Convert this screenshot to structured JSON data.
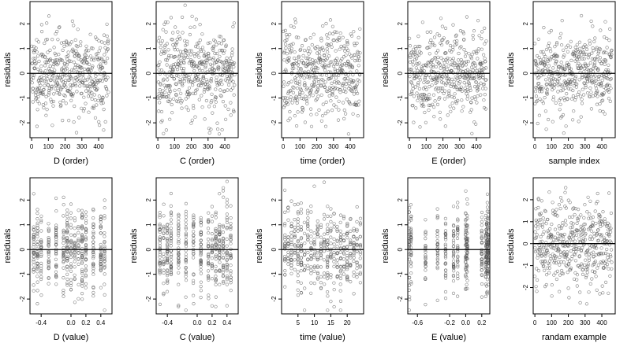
{
  "chart_data": [
    {
      "type": "scatter",
      "name": "D (order)",
      "xlabel": "D (order)",
      "ylabel": "residuals",
      "xlim": [
        -10,
        480
      ],
      "ylim": [
        -2.6,
        2.9
      ],
      "xticks": [
        0,
        100,
        200,
        300,
        400
      ],
      "xtick_labels": [
        "0",
        "100",
        "200",
        "300",
        "400"
      ],
      "yticks": [
        -2,
        -1,
        0,
        1,
        2
      ],
      "ytick_labels": [
        "-2",
        "-1",
        "0",
        "1",
        "2"
      ],
      "zero_line": true,
      "grid": false,
      "pattern": "order",
      "spread": 0.85,
      "seed": 11
    },
    {
      "type": "scatter",
      "name": "C (order)",
      "xlabel": "C (order)",
      "ylabel": "residuals",
      "xlim": [
        -10,
        480
      ],
      "ylim": [
        -2.6,
        2.9
      ],
      "xticks": [
        0,
        100,
        200,
        300,
        400
      ],
      "xtick_labels": [
        "0",
        "100",
        "200",
        "300",
        "400"
      ],
      "yticks": [
        -2,
        -1,
        0,
        1,
        2
      ],
      "ytick_labels": [
        "-2",
        "-1",
        "0",
        "1",
        "2"
      ],
      "zero_line": true,
      "grid": false,
      "pattern": "order",
      "spread": 0.9,
      "seed": 23
    },
    {
      "type": "scatter",
      "name": "time (order)",
      "xlabel": "time (order)",
      "ylabel": "residuals",
      "xlim": [
        -10,
        480
      ],
      "ylim": [
        -2.6,
        2.9
      ],
      "xticks": [
        0,
        100,
        200,
        300,
        400
      ],
      "xtick_labels": [
        "0",
        "100",
        "200",
        "300",
        "400"
      ],
      "yticks": [
        -2,
        -1,
        0,
        1,
        2
      ],
      "ytick_labels": [
        "-2",
        "-1",
        "0",
        "1",
        "2"
      ],
      "zero_line": true,
      "grid": false,
      "pattern": "order",
      "spread": 0.9,
      "seed": 37
    },
    {
      "type": "scatter",
      "name": "E (order)",
      "xlabel": "E (order)",
      "ylabel": "residuals",
      "xlim": [
        -10,
        480
      ],
      "ylim": [
        -2.6,
        2.9
      ],
      "xticks": [
        0,
        100,
        200,
        300,
        400
      ],
      "xtick_labels": [
        "0",
        "100",
        "200",
        "300",
        "400"
      ],
      "yticks": [
        -2,
        -1,
        0,
        1,
        2
      ],
      "ytick_labels": [
        "-2",
        "-1",
        "0",
        "1",
        "2"
      ],
      "zero_line": true,
      "grid": false,
      "pattern": "order",
      "spread": 0.85,
      "seed": 41
    },
    {
      "type": "scatter",
      "name": "sample index",
      "xlabel": "sample index",
      "ylabel": "residuals",
      "xlim": [
        -10,
        480
      ],
      "ylim": [
        -2.6,
        2.9
      ],
      "xticks": [
        0,
        100,
        200,
        300,
        400
      ],
      "xtick_labels": [
        "0",
        "100",
        "200",
        "300",
        "400"
      ],
      "yticks": [
        -2,
        -1,
        0,
        1,
        2
      ],
      "ytick_labels": [
        "-2",
        "-1",
        "0",
        "1",
        "2"
      ],
      "zero_line": true,
      "grid": false,
      "pattern": "order",
      "spread": 0.85,
      "seed": 53
    },
    {
      "type": "scatter",
      "name": "D (value)",
      "xlabel": "D (value)",
      "ylabel": "residuals",
      "xlim": [
        -0.55,
        0.55
      ],
      "ylim": [
        -2.6,
        2.9
      ],
      "xticks": [
        -0.4,
        0,
        0.2,
        0.4
      ],
      "xtick_labels": [
        "-0.4",
        "0.0",
        "0.2",
        "0.4"
      ],
      "yticks": [
        -2,
        -1,
        0,
        1,
        2
      ],
      "ytick_labels": [
        "-2",
        "-1",
        "0",
        "1",
        "2"
      ],
      "zero_line": true,
      "grid": false,
      "pattern": "value",
      "levels": [
        -0.5,
        -0.45,
        -0.4,
        -0.3,
        -0.2,
        -0.1,
        -0.05,
        0,
        0.05,
        0.1,
        0.15,
        0.2,
        0.3,
        0.4,
        0.45
      ],
      "spread": 0.85,
      "seed": 61
    },
    {
      "type": "scatter",
      "name": "C (value)",
      "xlabel": "C (value)",
      "ylabel": "residuals",
      "xlim": [
        -0.55,
        0.55
      ],
      "ylim": [
        -2.6,
        2.9
      ],
      "xticks": [
        -0.4,
        0,
        0.2,
        0.4
      ],
      "xtick_labels": [
        "-0.4",
        "0.0",
        "0.2",
        "0.4"
      ],
      "yticks": [
        -2,
        -1,
        0,
        1,
        2
      ],
      "ytick_labels": [
        "-2",
        "-1",
        "0",
        "1",
        "2"
      ],
      "zero_line": true,
      "grid": false,
      "pattern": "value",
      "levels": [
        -0.5,
        -0.45,
        -0.4,
        -0.35,
        -0.25,
        -0.15,
        -0.05,
        0.05,
        0.15,
        0.2,
        0.25,
        0.3,
        0.35,
        0.4,
        0.45
      ],
      "spread": 0.9,
      "seed": 73
    },
    {
      "type": "scatter",
      "name": "time (value)",
      "xlabel": "time (value)",
      "ylabel": "residuals",
      "xlim": [
        0,
        25
      ],
      "ylim": [
        -2.6,
        2.9
      ],
      "xticks": [
        5,
        10,
        15,
        20
      ],
      "xtick_labels": [
        "5",
        "10",
        "15",
        "20"
      ],
      "yticks": [
        -2,
        -1,
        0,
        1,
        2
      ],
      "ytick_labels": [
        "-2",
        "-1",
        "0",
        "1",
        "2"
      ],
      "zero_line": true,
      "grid": false,
      "pattern": "value",
      "levels": [
        1,
        2,
        3,
        4,
        5,
        6,
        7,
        8,
        9,
        10,
        11,
        12,
        13,
        14,
        15,
        16,
        17,
        18,
        19,
        20,
        21,
        22,
        23,
        24
      ],
      "spread": 0.9,
      "seed": 89
    },
    {
      "type": "scatter",
      "name": "E (value)",
      "xlabel": "E (value)",
      "ylabel": "residuals",
      "xlim": [
        -0.72,
        0.3
      ],
      "ylim": [
        -2.6,
        2.9
      ],
      "xticks": [
        -0.6,
        -0.2,
        0,
        0.2
      ],
      "xtick_labels": [
        "-0.6",
        "-0.2",
        "0.0",
        "0.2"
      ],
      "yticks": [
        -2,
        -1,
        0,
        1,
        2
      ],
      "ytick_labels": [
        "-2",
        "-1",
        "0",
        "1",
        "2"
      ],
      "zero_line": true,
      "grid": false,
      "pattern": "value",
      "levels": [
        -0.7,
        -0.68,
        -0.5,
        -0.35,
        -0.25,
        -0.15,
        -0.1,
        0,
        0.01,
        0.02,
        0.2,
        0.25,
        0.26,
        0.27,
        0.28
      ],
      "spread": 0.85,
      "seed": 97
    },
    {
      "type": "scatter",
      "name": "randam example",
      "xlabel": "randam example",
      "ylabel": "residuals",
      "xlim": [
        -10,
        480
      ],
      "ylim": [
        -3.2,
        3.0
      ],
      "xticks": [
        0,
        100,
        200,
        300,
        400
      ],
      "xtick_labels": [
        "0",
        "100",
        "200",
        "300",
        "400"
      ],
      "yticks": [
        -2,
        -1,
        0,
        1,
        2
      ],
      "ytick_labels": [
        "-2",
        "-1",
        "0",
        "1",
        "2"
      ],
      "zero_line": true,
      "grid": false,
      "pattern": "order",
      "spread": 1.0,
      "seed": 101
    }
  ]
}
